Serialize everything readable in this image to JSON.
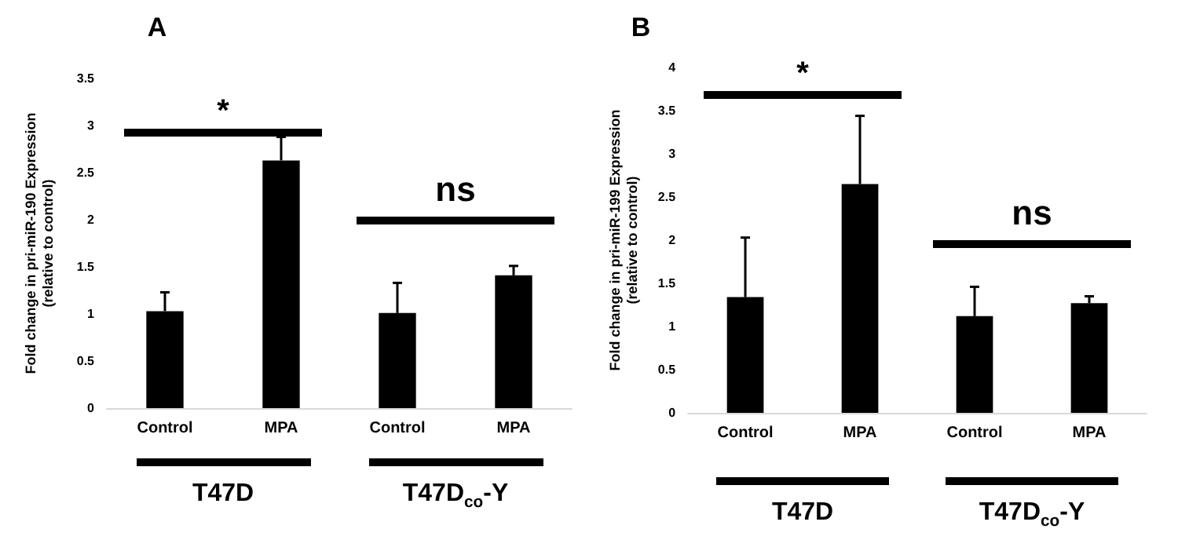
{
  "chart_data": [
    {
      "type": "bar",
      "title": "A",
      "ylabel": "Fold change in pri-miR-190 Expression\n(relative to control)",
      "categories": [
        "Control",
        "MPA",
        "Control",
        "MPA"
      ],
      "series": [
        {
          "color": "#000000",
          "values": [
            1.03,
            2.63,
            1.01,
            1.41
          ],
          "errors": [
            [
              1.03,
              1.23
            ],
            [
              2.63,
              2.88
            ],
            [
              1.01,
              1.33
            ],
            [
              1.41,
              1.51
            ]
          ]
        }
      ],
      "ylim": [
        0,
        3.5
      ],
      "yticks": [
        0,
        0.5,
        1,
        1.5,
        2,
        2.5,
        3,
        3.5
      ],
      "annotations": [
        "*",
        "ns",
        "T47D",
        "T47D$_{co}$-Y"
      ]
    },
    {
      "type": "bar",
      "title": "B",
      "ylabel": "Fold change in pri-miR-199 Expression\n(relative to control)",
      "categories": [
        "Control",
        "MPA",
        "Control",
        "MPA"
      ],
      "series": [
        {
          "color": "#000000",
          "values": [
            1.34,
            2.65,
            1.12,
            1.27
          ],
          "errors": [
            [
              1.34,
              2.03
            ],
            [
              2.65,
              3.44
            ],
            [
              1.12,
              1.46
            ],
            [
              1.27,
              1.35
            ]
          ]
        }
      ],
      "ylim": [
        0,
        4
      ],
      "yticks": [
        0,
        0.5,
        1,
        1.5,
        2,
        2.5,
        3,
        3.5,
        4
      ],
      "annotations": [
        "*",
        "ns",
        "T47D",
        "T47D$_{co}$-Y"
      ]
    }
  ]
}
